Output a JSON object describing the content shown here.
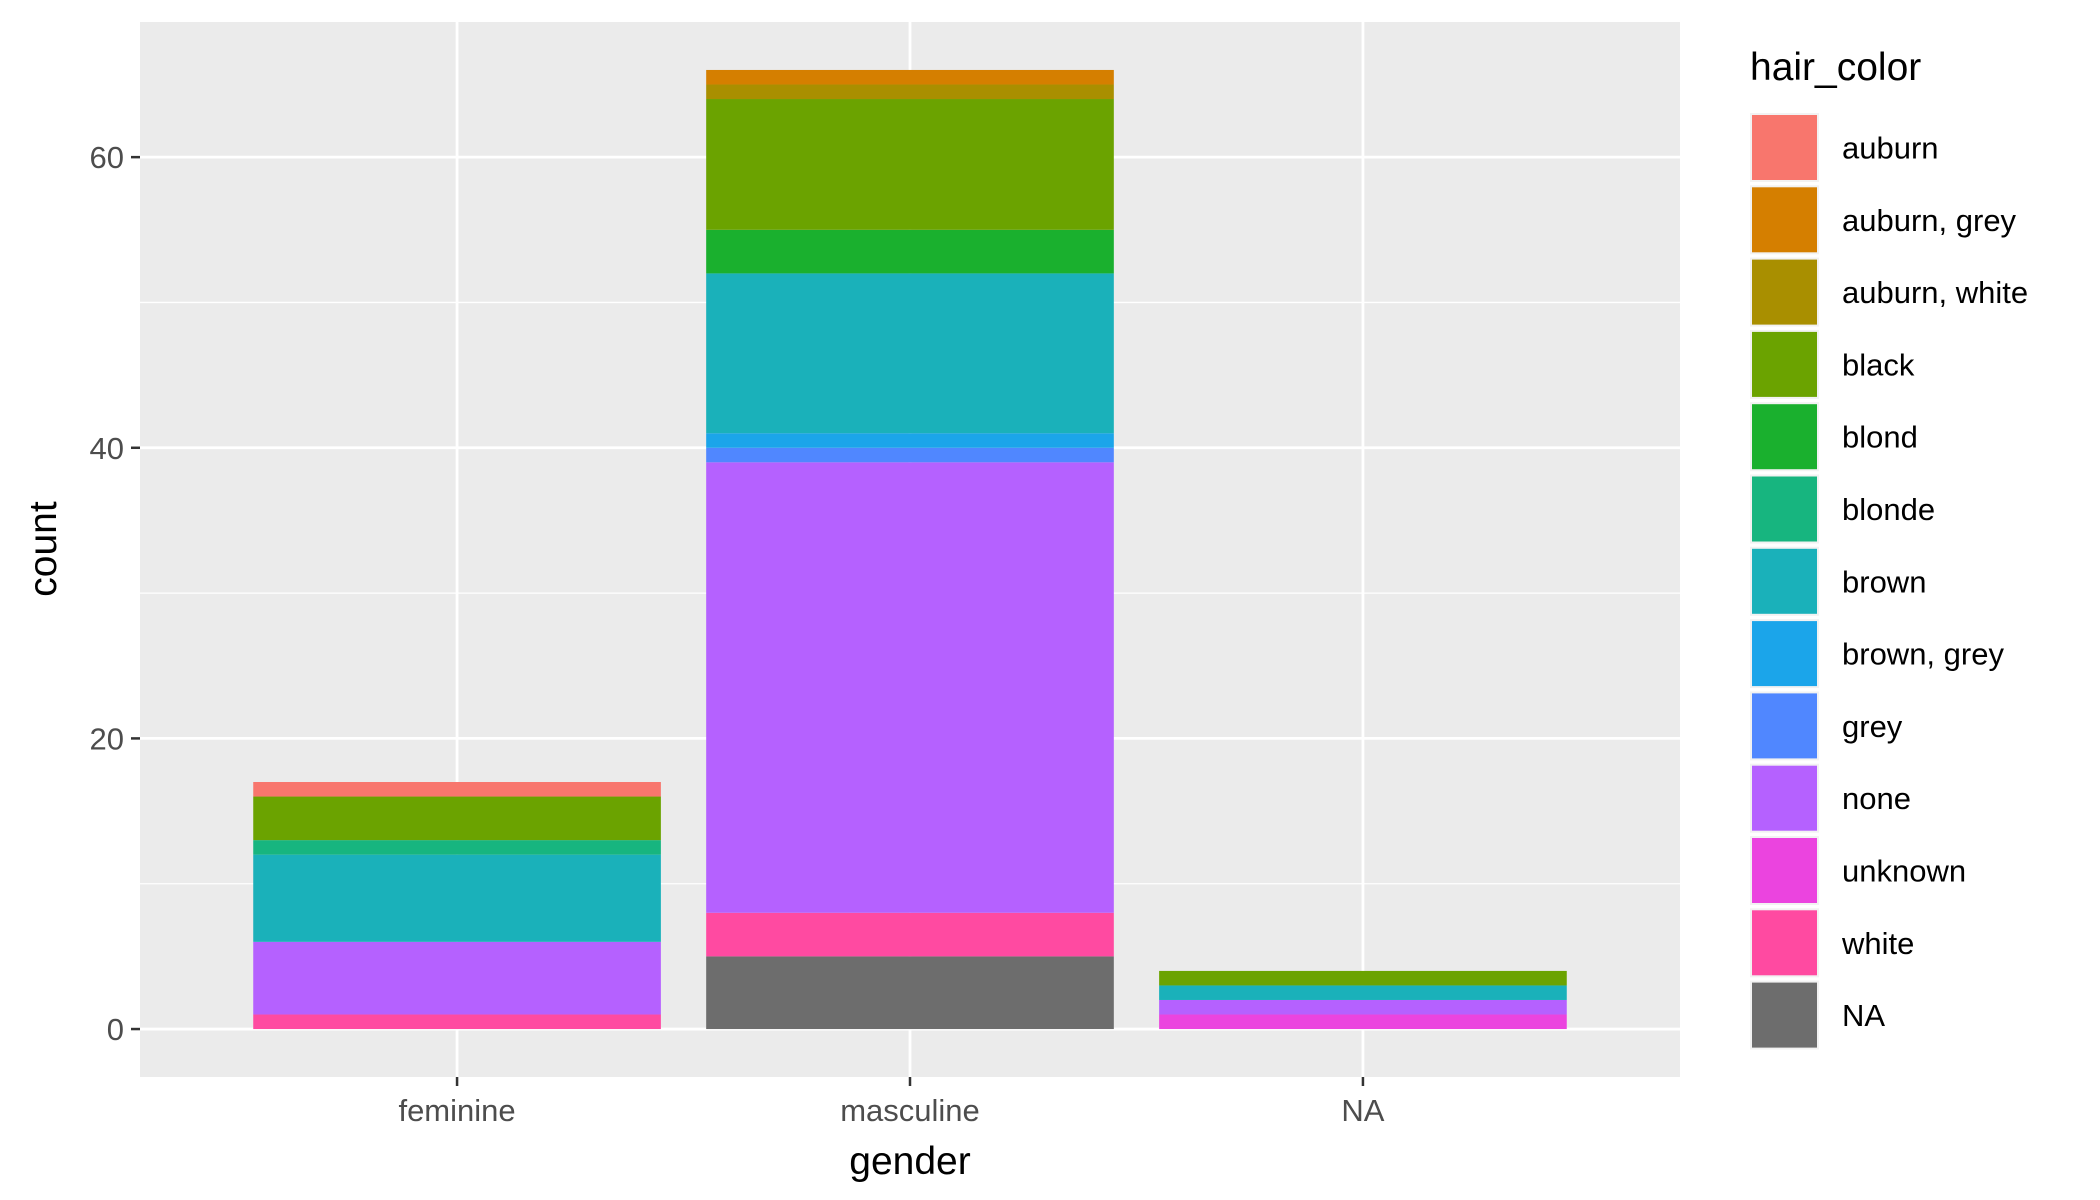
{
  "chart_data": {
    "type": "bar",
    "stacked": true,
    "xlabel": "gender",
    "ylabel": "count",
    "ylim": [
      -3.3,
      69.3
    ],
    "yticks": [
      0,
      20,
      40,
      60
    ],
    "y_minor_ticks": [
      10,
      30,
      50
    ],
    "grid": true,
    "legend_position": "right",
    "legend_title": "hair_color",
    "categories": [
      "feminine",
      "masculine",
      "NA"
    ],
    "stack_order": [
      "auburn",
      "auburn, grey",
      "auburn, white",
      "black",
      "blond",
      "blonde",
      "brown",
      "brown, grey",
      "grey",
      "none",
      "unknown",
      "white",
      "NA"
    ],
    "series": [
      {
        "name": "auburn",
        "color": "#F8766D",
        "values": [
          1,
          0,
          0
        ]
      },
      {
        "name": "auburn, grey",
        "color": "#DB8E00",
        "values": [
          0,
          1,
          0
        ]
      },
      {
        "name": "auburn, white",
        "color": "#AEA200",
        "values": [
          0,
          1,
          0
        ]
      },
      {
        "name": "black",
        "color": "#64B200",
        "values": [
          3,
          9,
          1
        ]
      },
      {
        "name": "blond",
        "color": "#00BD5C",
        "values": [
          0,
          3,
          0
        ]
      },
      {
        "name": "blonde",
        "color": "#00C1A7",
        "values": [
          1,
          0,
          0
        ]
      },
      {
        "name": "brown",
        "color": "#00BADE",
        "values": [
          6,
          11,
          1
        ]
      },
      {
        "name": "brown, grey",
        "color": "#00A6FF",
        "values": [
          0,
          1,
          0
        ]
      },
      {
        "name": "grey",
        "color": "#B385FF",
        "values": [
          0,
          1,
          0
        ]
      },
      {
        "name": "none",
        "color": "#EF67EB",
        "values": [
          5,
          31,
          1
        ]
      },
      {
        "name": "unknown",
        "color": "#FF63B6",
        "values": [
          0,
          0,
          1
        ]
      },
      {
        "name": "white",
        "color": "#FF63B6",
        "values": [
          1,
          3,
          0
        ]
      },
      {
        "name": "NA",
        "color": "#6F6F6F",
        "values": [
          0,
          5,
          0
        ]
      }
    ],
    "render_colors": {
      "auburn": "#F8766D",
      "auburn, grey": "#D57F00",
      "auburn, white": "#A98F00",
      "black": "#6BA300",
      "blond": "#1AB02E",
      "blonde": "#17B57F",
      "brown": "#1AB1BA",
      "brown, grey": "#1BA5EA",
      "grey": "#5087FF",
      "none": "#B561FF",
      "unknown": "#EB44DF",
      "white": "#FF4AA1",
      "NA": "#6D6D6D"
    }
  }
}
